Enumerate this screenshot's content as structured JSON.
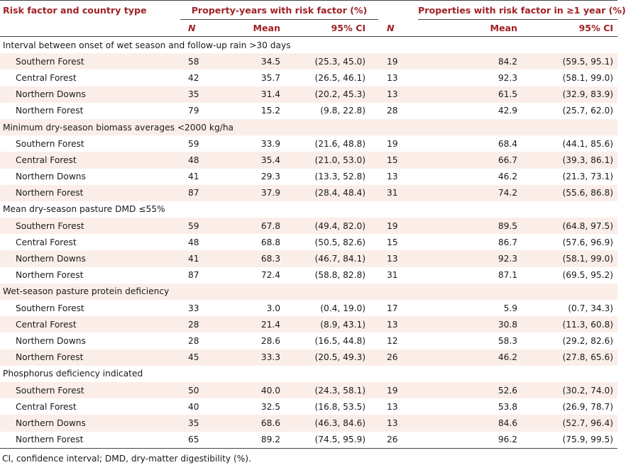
{
  "header": {
    "first_col": "Risk factor and country type",
    "group1": "Property-years with risk factor (%)",
    "group2": "Properties with risk factor in ≥1 year (%)",
    "n": "N",
    "mean": "Mean",
    "ci": "95% CI"
  },
  "sections": [
    {
      "title": "Interval between onset of wet season and follow-up rain >30 days",
      "rows": [
        {
          "label": "Southern Forest",
          "n1": "58",
          "mean1": "34.5",
          "ci1": "(25.3, 45.0)",
          "n2": "19",
          "mean2": "84.2",
          "ci2": "(59.5, 95.1)"
        },
        {
          "label": "Central Forest",
          "n1": "42",
          "mean1": "35.7",
          "ci1": "(26.5, 46.1)",
          "n2": "13",
          "mean2": "92.3",
          "ci2": "(58.1, 99.0)"
        },
        {
          "label": "Northern Downs",
          "n1": "35",
          "mean1": "31.4",
          "ci1": "(20.2, 45.3)",
          "n2": "13",
          "mean2": "61.5",
          "ci2": "(32.9, 83.9)"
        },
        {
          "label": "Northern Forest",
          "n1": "79",
          "mean1": "15.2",
          "ci1": "(9.8, 22.8)",
          "n2": "28",
          "mean2": "42.9",
          "ci2": "(25.7, 62.0)"
        }
      ]
    },
    {
      "title": "Minimum dry-season biomass averages <2000 kg/ha",
      "rows": [
        {
          "label": "Southern Forest",
          "n1": "59",
          "mean1": "33.9",
          "ci1": "(21.6, 48.8)",
          "n2": "19",
          "mean2": "68.4",
          "ci2": "(44.1, 85.6)"
        },
        {
          "label": "Central Forest",
          "n1": "48",
          "mean1": "35.4",
          "ci1": "(21.0, 53.0)",
          "n2": "15",
          "mean2": "66.7",
          "ci2": "(39.3, 86.1)"
        },
        {
          "label": "Northern Downs",
          "n1": "41",
          "mean1": "29.3",
          "ci1": "(13.3, 52.8)",
          "n2": "13",
          "mean2": "46.2",
          "ci2": "(21.3, 73.1)"
        },
        {
          "label": "Northern Forest",
          "n1": "87",
          "mean1": "37.9",
          "ci1": "(28.4, 48.4)",
          "n2": "31",
          "mean2": "74.2",
          "ci2": "(55.6, 86.8)"
        }
      ]
    },
    {
      "title": "Mean dry-season pasture DMD ≤55%",
      "rows": [
        {
          "label": "Southern Forest",
          "n1": "59",
          "mean1": "67.8",
          "ci1": "(49.4, 82.0)",
          "n2": "19",
          "mean2": "89.5",
          "ci2": "(64.8, 97.5)"
        },
        {
          "label": "Central Forest",
          "n1": "48",
          "mean1": "68.8",
          "ci1": "(50.5, 82.6)",
          "n2": "15",
          "mean2": "86.7",
          "ci2": "(57.6, 96.9)"
        },
        {
          "label": "Northern Downs",
          "n1": "41",
          "mean1": "68.3",
          "ci1": "(46.7, 84.1)",
          "n2": "13",
          "mean2": "92.3",
          "ci2": "(58.1, 99.0)"
        },
        {
          "label": "Northern Forest",
          "n1": "87",
          "mean1": "72.4",
          "ci1": "(58.8, 82.8)",
          "n2": "31",
          "mean2": "87.1",
          "ci2": "(69.5, 95.2)"
        }
      ]
    },
    {
      "title": "Wet-season pasture protein deficiency",
      "rows": [
        {
          "label": "Southern Forest",
          "n1": "33",
          "mean1": "3.0",
          "ci1": "(0.4, 19.0)",
          "n2": "17",
          "mean2": "5.9",
          "ci2": "(0.7, 34.3)"
        },
        {
          "label": "Central Forest",
          "n1": "28",
          "mean1": "21.4",
          "ci1": "(8.9, 43.1)",
          "n2": "13",
          "mean2": "30.8",
          "ci2": "(11.3, 60.8)"
        },
        {
          "label": "Northern Downs",
          "n1": "28",
          "mean1": "28.6",
          "ci1": "(16.5, 44.8)",
          "n2": "12",
          "mean2": "58.3",
          "ci2": "(29.2, 82.6)"
        },
        {
          "label": "Northern Forest",
          "n1": "45",
          "mean1": "33.3",
          "ci1": "(20.5, 49.3)",
          "n2": "26",
          "mean2": "46.2",
          "ci2": "(27.8, 65.6)"
        }
      ]
    },
    {
      "title": "Phosphorus deficiency indicated",
      "rows": [
        {
          "label": "Southern Forest",
          "n1": "50",
          "mean1": "40.0",
          "ci1": "(24.3, 58.1)",
          "n2": "19",
          "mean2": "52.6",
          "ci2": "(30.2, 74.0)"
        },
        {
          "label": "Central Forest",
          "n1": "40",
          "mean1": "32.5",
          "ci1": "(16.8, 53.5)",
          "n2": "13",
          "mean2": "53.8",
          "ci2": "(26.9, 78.7)"
        },
        {
          "label": "Northern Downs",
          "n1": "35",
          "mean1": "68.6",
          "ci1": "(46.3, 84.6)",
          "n2": "13",
          "mean2": "84.6",
          "ci2": "(52.7, 96.4)"
        },
        {
          "label": "Northern Forest",
          "n1": "65",
          "mean1": "89.2",
          "ci1": "(74.5, 95.9)",
          "n2": "26",
          "mean2": "96.2",
          "ci2": "(75.9, 99.5)"
        }
      ]
    }
  ],
  "footnote": "CI, confidence interval; DMD, dry-matter digestibility (%).",
  "colors": {
    "header_text": "#a02226",
    "alt_row_bg": "#fbeee9",
    "rule": "#444444"
  }
}
